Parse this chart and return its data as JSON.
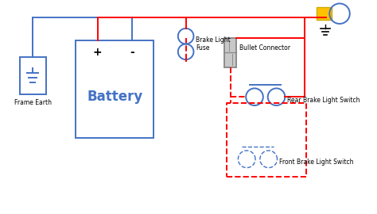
{
  "bg_color": "#ffffff",
  "red": "#ff0000",
  "blue": "#4472c4",
  "gray": "#8c8c8c",
  "light_yellow": "#ffc000",
  "light_outline": "#ccaa00",
  "labels": {
    "frame_earth": "Frame Earth",
    "battery": "Battery",
    "fuse": "Brake Light\nFuse",
    "bullet": "Bullet Connector",
    "rear_switch": "Rear Brake Light Switch",
    "front_switch": "Front Brake Light Switch"
  },
  "battery_plus": "+",
  "battery_minus": "-",
  "lw_wire": 1.4,
  "lw_comp": 1.4,
  "font_label": 5.5,
  "font_battery": 12,
  "font_terminal": 10
}
